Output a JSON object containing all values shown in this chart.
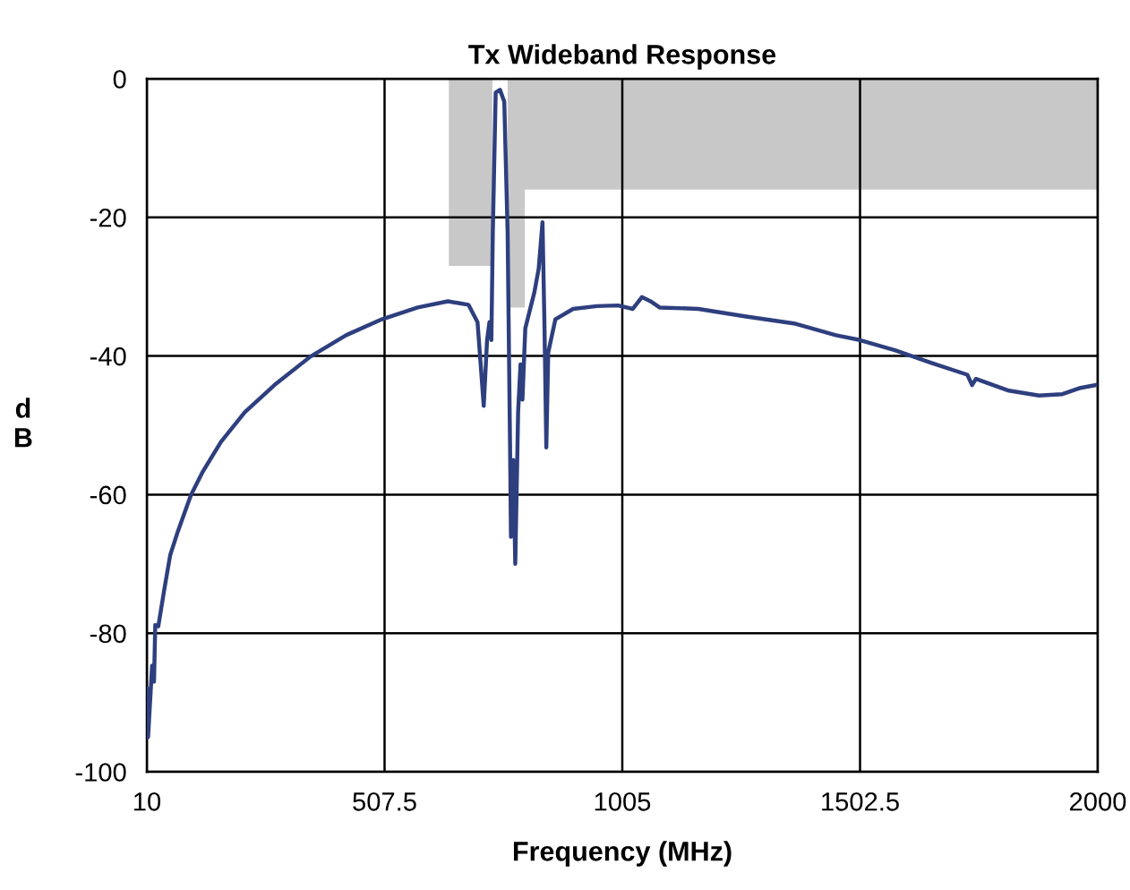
{
  "chart_data": {
    "type": "line",
    "title": "Tx Wideband Response",
    "xlabel": "Frequency (MHz)",
    "ylabel": "d\nB",
    "xlim": [
      10,
      2000
    ],
    "xticks": [
      10,
      507.5,
      1005,
      1502.5,
      2000
    ],
    "ylim": [
      -100,
      0
    ],
    "yticks": [
      -100,
      -80,
      -60,
      -40,
      -20,
      0
    ],
    "grid": true,
    "marker": "none",
    "line_style": "solid",
    "series": [
      {
        "type": "area",
        "color": "#c8c8c8",
        "x": [
          642,
          733,
          733,
          765,
          765,
          801,
          801,
          2000
        ],
        "values": [
          -27,
          -27,
          0,
          0,
          -33,
          -33,
          -16,
          -16
        ]
      },
      {
        "color": "#2e3f7f",
        "x": [
          10,
          12.6,
          21,
          25,
          27.6,
          34,
          46,
          59,
          75,
          102,
          127,
          165,
          215,
          277,
          352,
          427,
          502,
          577,
          640,
          665,
          683,
          702,
          715,
          722,
          727,
          731,
          734,
          740,
          749,
          758,
          765,
          770,
          772,
          777,
          781,
          787,
          792,
          796,
          802,
          821,
          830,
          838,
          842,
          846,
          850,
          865,
          902,
          952,
          996,
          1027,
          1046,
          1064,
          1083,
          1164,
          1264,
          1364,
          1452,
          1502,
          1577,
          1652,
          1727,
          1737,
          1745,
          1814,
          1877,
          1926,
          1964,
          1995
        ],
        "values": [
          -88,
          -95,
          -84.7,
          -87,
          -78.8,
          -79,
          -73.9,
          -68.7,
          -65.3,
          -60.1,
          -56.7,
          -52.4,
          -48.1,
          -44.2,
          -40.1,
          -37,
          -34.7,
          -33,
          -32.1,
          -32.4,
          -32.6,
          -35.1,
          -47.2,
          -37.7,
          -35.1,
          -37.7,
          -22.2,
          -2,
          -1.6,
          -3.3,
          -22.2,
          -52.4,
          -66.1,
          -55,
          -70,
          -48,
          -41.2,
          -46.3,
          -36,
          -30.8,
          -27.4,
          -20.7,
          -35.1,
          -53.2,
          -39.5,
          -34.7,
          -33.2,
          -32.8,
          -32.7,
          -33.2,
          -31.5,
          -32.1,
          -33,
          -33.2,
          -34.3,
          -35.3,
          -37,
          -37.7,
          -39.2,
          -41,
          -42.7,
          -44.2,
          -43.3,
          -45,
          -45.7,
          -45.5,
          -44.6,
          -44.2
        ]
      }
    ]
  }
}
